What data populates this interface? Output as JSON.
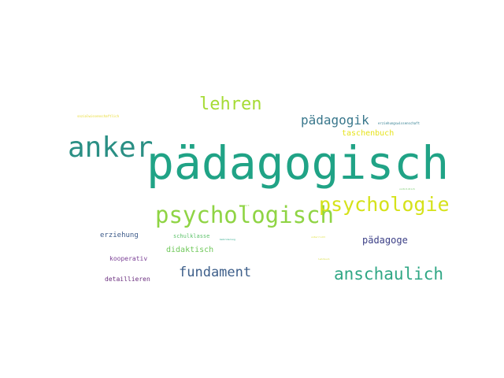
{
  "word_cloud": {
    "words": [
      {
        "id": "w-paedagogisch",
        "text": "pädagogisch",
        "color": "#20a386"
      },
      {
        "id": "w-anker",
        "text": "anker",
        "color": "#2a8f84"
      },
      {
        "id": "w-psychologisch",
        "text": "psychologisch",
        "color": "#8fd444"
      },
      {
        "id": "w-psychologie",
        "text": "psychologie",
        "color": "#d5e21a"
      },
      {
        "id": "w-lehren",
        "text": "lehren",
        "color": "#a6db35"
      },
      {
        "id": "w-paedagogik",
        "text": "pädagogik",
        "color": "#39778c"
      },
      {
        "id": "w-anschaulich",
        "text": "anschaulich",
        "color": "#30a785"
      },
      {
        "id": "w-fundament",
        "text": "fundament",
        "color": "#3e5f8a"
      },
      {
        "id": "w-paedagoge",
        "text": "pädagoge",
        "color": "#3b3f86"
      },
      {
        "id": "w-taschenbuch",
        "text": "taschenbuch",
        "color": "#e6e31c"
      },
      {
        "id": "w-didaktisch",
        "text": "didaktisch",
        "color": "#6fc85a"
      },
      {
        "id": "w-erziehung",
        "text": "erziehung",
        "color": "#3d5b8a"
      },
      {
        "id": "w-schulklasse",
        "text": "schulklasse",
        "color": "#5dc26a"
      },
      {
        "id": "w-kooperativ",
        "text": "kooperativ",
        "color": "#7a3f95"
      },
      {
        "id": "w-detaillieren",
        "text": "detaillieren",
        "color": "#6b2f7f"
      },
      {
        "id": "w-erziehungswissenschaft",
        "text": "erziehungswissenschaft",
        "color": "#2c7b8e"
      },
      {
        "id": "w-tiny-yellow-topleft",
        "text": "sozialwissenschaftlich",
        "color": "#e7d92a"
      },
      {
        "id": "w-tiny-green-1",
        "text": "bewährt",
        "color": "#8fd444"
      },
      {
        "id": "w-tiny-green-2",
        "text": "vorbildlich",
        "color": "#6bc35e"
      },
      {
        "id": "w-tiny-teal",
        "text": "bebilderung",
        "color": "#28a587"
      },
      {
        "id": "w-tiny-yellow-2",
        "text": "lehrbuch",
        "color": "#d6dc3a"
      },
      {
        "id": "w-tiny-yellow-3",
        "text": "unterricht",
        "color": "#dede2a"
      }
    ]
  }
}
